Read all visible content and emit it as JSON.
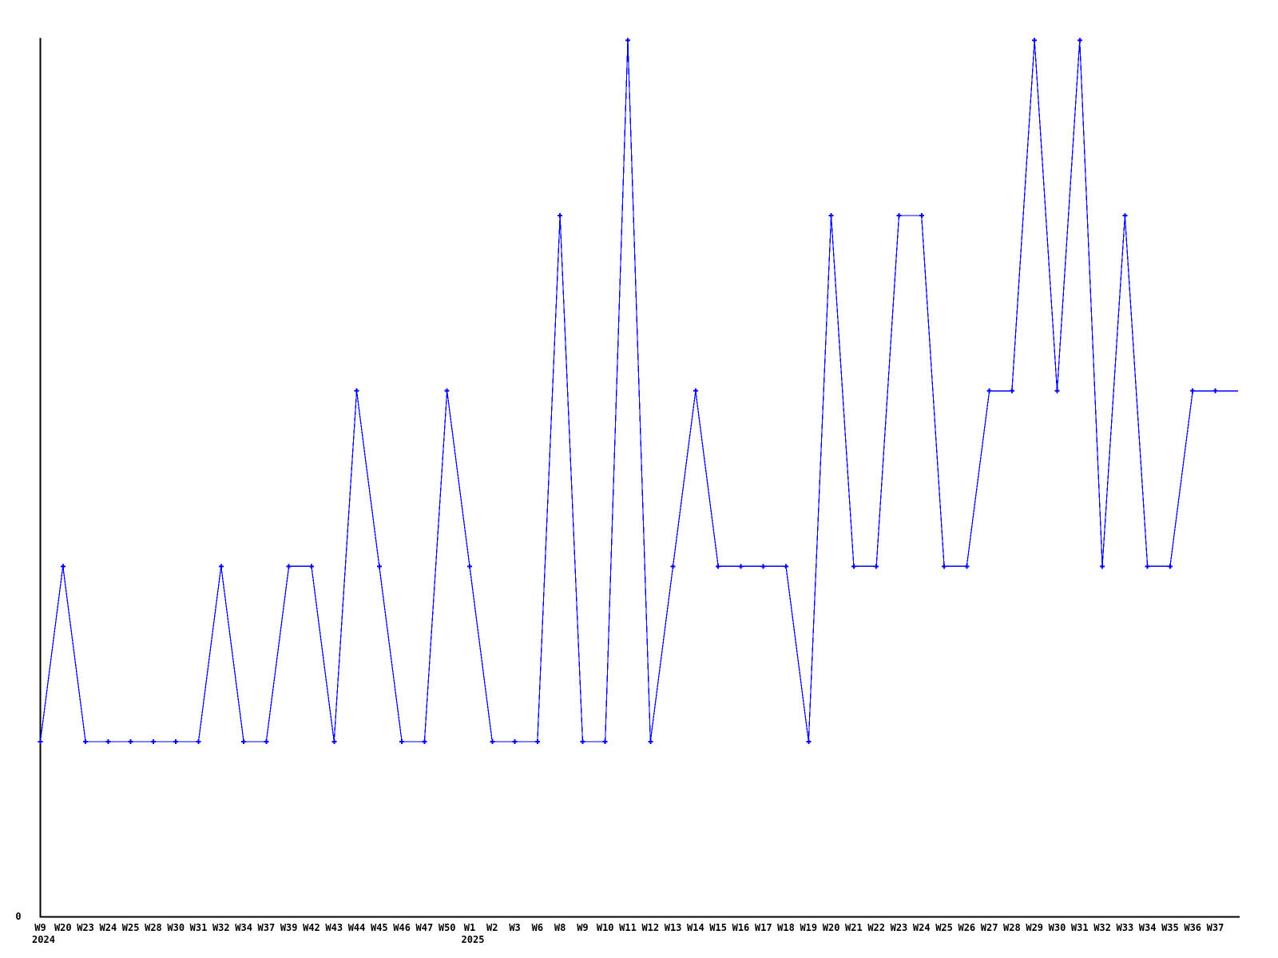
{
  "chart_data": {
    "type": "line",
    "grid": false,
    "legend": "none",
    "background": "#ffffff",
    "line_color": "#0000ff",
    "axis_color": "#000000",
    "marker": "plus",
    "y_axis": {
      "min": 0,
      "max": 5,
      "tick_labels": [
        "0"
      ]
    },
    "x_year_labels": [
      {
        "text": "2024",
        "tick_index": 0
      },
      {
        "text": "2025",
        "tick_index": 19
      }
    ],
    "points": [
      {
        "label": "W9",
        "year": 2024,
        "value": 1
      },
      {
        "label": "W20",
        "year": 2024,
        "value": 2
      },
      {
        "label": "W23",
        "year": 2024,
        "value": 1
      },
      {
        "label": "W24",
        "year": 2024,
        "value": 1
      },
      {
        "label": "W25",
        "year": 2024,
        "value": 1
      },
      {
        "label": "W28",
        "year": 2024,
        "value": 1
      },
      {
        "label": "W30",
        "year": 2024,
        "value": 1
      },
      {
        "label": "W31",
        "year": 2024,
        "value": 1
      },
      {
        "label": "W32",
        "year": 2024,
        "value": 2
      },
      {
        "label": "W34",
        "year": 2024,
        "value": 1
      },
      {
        "label": "W37",
        "year": 2024,
        "value": 1
      },
      {
        "label": "W39",
        "year": 2024,
        "value": 2
      },
      {
        "label": "W42",
        "year": 2024,
        "value": 2
      },
      {
        "label": "W43",
        "year": 2024,
        "value": 1
      },
      {
        "label": "W44",
        "year": 2024,
        "value": 3
      },
      {
        "label": "W45",
        "year": 2024,
        "value": 2
      },
      {
        "label": "W46",
        "year": 2024,
        "value": 1
      },
      {
        "label": "W47",
        "year": 2024,
        "value": 1
      },
      {
        "label": "W50",
        "year": 2024,
        "value": 3
      },
      {
        "label": "W1",
        "year": 2025,
        "value": 2
      },
      {
        "label": "W2",
        "year": 2025,
        "value": 1
      },
      {
        "label": "W3",
        "year": 2025,
        "value": 1
      },
      {
        "label": "W6",
        "year": 2025,
        "value": 1
      },
      {
        "label": "W8",
        "year": 2025,
        "value": 4
      },
      {
        "label": "W9",
        "year": 2025,
        "value": 1
      },
      {
        "label": "W10",
        "year": 2025,
        "value": 1
      },
      {
        "label": "W11",
        "year": 2025,
        "value": 5
      },
      {
        "label": "W12",
        "year": 2025,
        "value": 1
      },
      {
        "label": "W13",
        "year": 2025,
        "value": 2
      },
      {
        "label": "W14",
        "year": 2025,
        "value": 3
      },
      {
        "label": "W15",
        "year": 2025,
        "value": 2
      },
      {
        "label": "W16",
        "year": 2025,
        "value": 2
      },
      {
        "label": "W17",
        "year": 2025,
        "value": 2
      },
      {
        "label": "W18",
        "year": 2025,
        "value": 2
      },
      {
        "label": "W19",
        "year": 2025,
        "value": 1
      },
      {
        "label": "W20",
        "year": 2025,
        "value": 4
      },
      {
        "label": "W21",
        "year": 2025,
        "value": 2
      },
      {
        "label": "W22",
        "year": 2025,
        "value": 2
      },
      {
        "label": "W23",
        "year": 2025,
        "value": 4
      },
      {
        "label": "W24",
        "year": 2025,
        "value": 4
      },
      {
        "label": "W25",
        "year": 2025,
        "value": 2
      },
      {
        "label": "W26",
        "year": 2025,
        "value": 2
      },
      {
        "label": "W27",
        "year": 2025,
        "value": 3
      },
      {
        "label": "W28",
        "year": 2025,
        "value": 3
      },
      {
        "label": "W29",
        "year": 2025,
        "value": 5
      },
      {
        "label": "W30",
        "year": 2025,
        "value": 3
      },
      {
        "label": "W31",
        "year": 2025,
        "value": 5
      },
      {
        "label": "W32",
        "year": 2025,
        "value": 2
      },
      {
        "label": "W33",
        "year": 2025,
        "value": 4
      },
      {
        "label": "W34",
        "year": 2025,
        "value": 2
      },
      {
        "label": "W35",
        "year": 2025,
        "value": 2
      },
      {
        "label": "W36",
        "year": 2025,
        "value": 3
      },
      {
        "label": "W37",
        "year": 2025,
        "value": 3
      }
    ],
    "trailing_line_value": 3
  }
}
